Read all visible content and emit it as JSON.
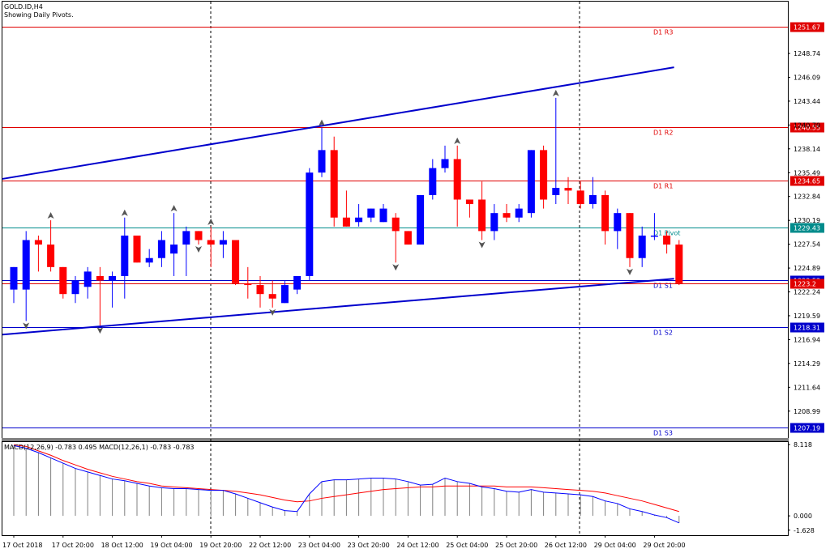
{
  "chart_data": {
    "type": "candlestick",
    "symbol_label": "GOLD.ID,H4",
    "subtitle": "Showing Daily Pivots.",
    "y_range": [
      1206,
      1254.5
    ],
    "y_ticks": [
      1248.74,
      1246.09,
      1243.44,
      1240.79,
      1238.14,
      1235.49,
      1232.84,
      1230.19,
      1227.54,
      1224.89,
      1222.24,
      1219.59,
      1216.94,
      1214.29,
      1211.64,
      1208.99
    ],
    "x_labels": [
      "17 Oct 2018",
      "17 Oct 20:00",
      "18 Oct 12:00",
      "19 Oct 04:00",
      "19 Oct 20:00",
      "22 Oct 12:00",
      "23 Oct 04:00",
      "23 Oct 20:00",
      "24 Oct 12:00",
      "25 Oct 04:00",
      "25 Oct 20:00",
      "26 Oct 12:00",
      "29 Oct 04:00",
      "29 Oct 20:00"
    ],
    "pivots": [
      {
        "name": "D1 R3",
        "value": 1251.67,
        "tag": "1251.67",
        "color": "#e00000"
      },
      {
        "name": "D1 R2",
        "value": 1240.55,
        "tag": "1240.55",
        "color": "#e00000"
      },
      {
        "name": "D1 R1",
        "value": 1234.65,
        "tag": "1234.65",
        "color": "#e00000"
      },
      {
        "name": "D1 Pivot",
        "value": 1229.43,
        "tag": "1229.43",
        "color": "#008b8b"
      },
      {
        "name": "D1 S1",
        "value": 1223.53,
        "tag": "1223.53",
        "color": "#0000cc"
      },
      {
        "name": "D1 S2",
        "value": 1218.31,
        "tag": "1218.31",
        "color": "#0000cc"
      },
      {
        "name": "D1 S3",
        "value": 1207.19,
        "tag": "1207.19",
        "color": "#0000cc"
      }
    ],
    "current_price": {
      "value": 1223.2,
      "tag": "1223.2",
      "color": "#e00000"
    },
    "candles": [
      {
        "o": 1222.5,
        "h": 1225.0,
        "l": 1221.0,
        "c": 1225.0
      },
      {
        "o": 1222.5,
        "h": 1229.0,
        "l": 1219.0,
        "c": 1228.0
      },
      {
        "o": 1228.0,
        "h": 1228.5,
        "l": 1224.5,
        "c": 1227.5
      },
      {
        "o": 1227.5,
        "h": 1230.2,
        "l": 1224.5,
        "c": 1225.0
      },
      {
        "o": 1225.0,
        "h": 1225.0,
        "l": 1221.5,
        "c": 1222.0
      },
      {
        "o": 1222.0,
        "h": 1224.0,
        "l": 1221.0,
        "c": 1223.5
      },
      {
        "o": 1222.8,
        "h": 1225.0,
        "l": 1221.5,
        "c": 1224.5
      },
      {
        "o": 1224.0,
        "h": 1225.0,
        "l": 1218.5,
        "c": 1223.5
      },
      {
        "o": 1223.5,
        "h": 1224.5,
        "l": 1220.5,
        "c": 1224.0
      },
      {
        "o": 1224.0,
        "h": 1230.5,
        "l": 1221.5,
        "c": 1228.5
      },
      {
        "o": 1228.5,
        "h": 1228.5,
        "l": 1225.5,
        "c": 1225.5
      },
      {
        "o": 1225.5,
        "h": 1227.0,
        "l": 1225.0,
        "c": 1226.0
      },
      {
        "o": 1226.0,
        "h": 1229.0,
        "l": 1225.0,
        "c": 1228.0
      },
      {
        "o": 1226.5,
        "h": 1231.0,
        "l": 1224.0,
        "c": 1227.5
      },
      {
        "o": 1227.5,
        "h": 1229.5,
        "l": 1224.0,
        "c": 1229.0
      },
      {
        "o": 1229.0,
        "h": 1229.0,
        "l": 1227.5,
        "c": 1228.0
      },
      {
        "o": 1228.0,
        "h": 1229.5,
        "l": 1225.0,
        "c": 1227.5
      },
      {
        "o": 1227.5,
        "h": 1229.0,
        "l": 1226.0,
        "c": 1228.0
      },
      {
        "o": 1228.0,
        "h": 1228.0,
        "l": 1223.0,
        "c": 1223.2
      },
      {
        "o": 1223.2,
        "h": 1225.0,
        "l": 1221.5,
        "c": 1223.0
      },
      {
        "o": 1223.0,
        "h": 1224.0,
        "l": 1220.5,
        "c": 1222.0
      },
      {
        "o": 1222.0,
        "h": 1223.5,
        "l": 1220.5,
        "c": 1221.5
      },
      {
        "o": 1221.0,
        "h": 1223.5,
        "l": 1221.0,
        "c": 1223.0
      },
      {
        "o": 1222.5,
        "h": 1224.0,
        "l": 1222.0,
        "c": 1224.0
      },
      {
        "o": 1224.0,
        "h": 1236.0,
        "l": 1223.5,
        "c": 1235.5
      },
      {
        "o": 1235.5,
        "h": 1240.5,
        "l": 1235.0,
        "c": 1238.0
      },
      {
        "o": 1238.0,
        "h": 1239.5,
        "l": 1229.5,
        "c": 1230.5
      },
      {
        "o": 1230.5,
        "h": 1233.5,
        "l": 1229.5,
        "c": 1229.5
      },
      {
        "o": 1230.0,
        "h": 1232.0,
        "l": 1229.5,
        "c": 1230.5
      },
      {
        "o": 1230.5,
        "h": 1231.5,
        "l": 1230.0,
        "c": 1231.5
      },
      {
        "o": 1230.0,
        "h": 1232.0,
        "l": 1230.0,
        "c": 1231.5
      },
      {
        "o": 1230.5,
        "h": 1231.0,
        "l": 1225.5,
        "c": 1229.0
      },
      {
        "o": 1229.0,
        "h": 1229.0,
        "l": 1227.5,
        "c": 1227.5
      },
      {
        "o": 1227.5,
        "h": 1233.0,
        "l": 1227.5,
        "c": 1233.0
      },
      {
        "o": 1233.0,
        "h": 1237.0,
        "l": 1232.5,
        "c": 1236.0
      },
      {
        "o": 1236.0,
        "h": 1238.5,
        "l": 1235.5,
        "c": 1237.0
      },
      {
        "o": 1237.0,
        "h": 1238.5,
        "l": 1229.5,
        "c": 1232.5
      },
      {
        "o": 1232.5,
        "h": 1232.5,
        "l": 1230.5,
        "c": 1232.0
      },
      {
        "o": 1232.5,
        "h": 1234.5,
        "l": 1228.0,
        "c": 1229.0
      },
      {
        "o": 1229.0,
        "h": 1232.0,
        "l": 1228.0,
        "c": 1231.0
      },
      {
        "o": 1231.0,
        "h": 1232.0,
        "l": 1230.0,
        "c": 1230.5
      },
      {
        "o": 1230.5,
        "h": 1232.0,
        "l": 1230.0,
        "c": 1231.5
      },
      {
        "o": 1231.0,
        "h": 1238.0,
        "l": 1230.5,
        "c": 1238.0
      },
      {
        "o": 1238.0,
        "h": 1238.5,
        "l": 1231.5,
        "c": 1232.5
      },
      {
        "o": 1233.0,
        "h": 1243.8,
        "l": 1232.0,
        "c": 1233.8
      },
      {
        "o": 1233.8,
        "h": 1235.0,
        "l": 1232.0,
        "c": 1233.5
      },
      {
        "o": 1233.5,
        "h": 1234.5,
        "l": 1231.5,
        "c": 1232.0
      },
      {
        "o": 1232.0,
        "h": 1235.0,
        "l": 1231.5,
        "c": 1233.0
      },
      {
        "o": 1233.0,
        "h": 1233.5,
        "l": 1227.5,
        "c": 1229.0
      },
      {
        "o": 1229.0,
        "h": 1231.5,
        "l": 1227.0,
        "c": 1231.0
      },
      {
        "o": 1231.0,
        "h": 1231.0,
        "l": 1225.0,
        "c": 1226.0
      },
      {
        "o": 1226.0,
        "h": 1229.5,
        "l": 1225.0,
        "c": 1228.5
      },
      {
        "o": 1228.5,
        "h": 1231.0,
        "l": 1228.0,
        "c": 1228.5
      },
      {
        "o": 1228.5,
        "h": 1229.0,
        "l": 1226.5,
        "c": 1227.5
      },
      {
        "o": 1227.5,
        "h": 1228.0,
        "l": 1223.0,
        "c": 1223.2
      }
    ],
    "fractals": {
      "up": [
        3,
        9,
        13,
        16,
        25,
        36,
        44
      ],
      "down": [
        1,
        7,
        15,
        21,
        31,
        38,
        50
      ]
    },
    "trendlines": [
      {
        "name": "upper-channel",
        "color": "#0000cc",
        "points": [
          [
            0,
            1234.8
          ],
          [
            53,
            1247.2
          ]
        ]
      },
      {
        "name": "lower-channel",
        "color": "#0000cc",
        "points": [
          [
            0,
            1217.5
          ],
          [
            53,
            1223.7
          ]
        ]
      }
    ],
    "macd": {
      "label": "MACD(12,26,9) -0.783 0.495 MACD(12,26,1) -0.783 -0.783",
      "y_range": [
        -2.2,
        8.4
      ],
      "y_ticks": [
        8.118,
        0.0,
        -1.628
      ],
      "histogram": [
        8.0,
        7.7,
        7.2,
        6.6,
        6.0,
        5.4,
        5.0,
        4.6,
        4.2,
        4.0,
        3.7,
        3.4,
        3.2,
        3.1,
        3.1,
        3.0,
        2.9,
        2.9,
        2.5,
        2.0,
        1.5,
        1.0,
        0.6,
        0.5,
        2.5,
        3.9,
        4.1,
        4.1,
        4.2,
        4.3,
        4.3,
        4.2,
        3.9,
        3.5,
        3.6,
        4.3,
        3.9,
        3.7,
        3.3,
        3.1,
        2.8,
        2.7,
        3.0,
        2.7,
        2.6,
        2.5,
        2.4,
        2.2,
        1.7,
        1.4,
        0.8,
        0.5,
        0.1,
        -0.2,
        -0.8
      ],
      "signal": [
        8.1,
        7.9,
        7.4,
        6.9,
        6.3,
        5.8,
        5.3,
        4.9,
        4.5,
        4.2,
        3.9,
        3.7,
        3.4,
        3.3,
        3.2,
        3.1,
        3.0,
        2.9,
        2.8,
        2.6,
        2.4,
        2.1,
        1.8,
        1.6,
        1.7,
        2.0,
        2.2,
        2.4,
        2.6,
        2.8,
        3.0,
        3.1,
        3.2,
        3.3,
        3.3,
        3.4,
        3.4,
        3.4,
        3.4,
        3.4,
        3.3,
        3.3,
        3.3,
        3.2,
        3.1,
        3.0,
        2.9,
        2.8,
        2.6,
        2.3,
        2.0,
        1.7,
        1.3,
        0.9,
        0.5
      ]
    }
  }
}
